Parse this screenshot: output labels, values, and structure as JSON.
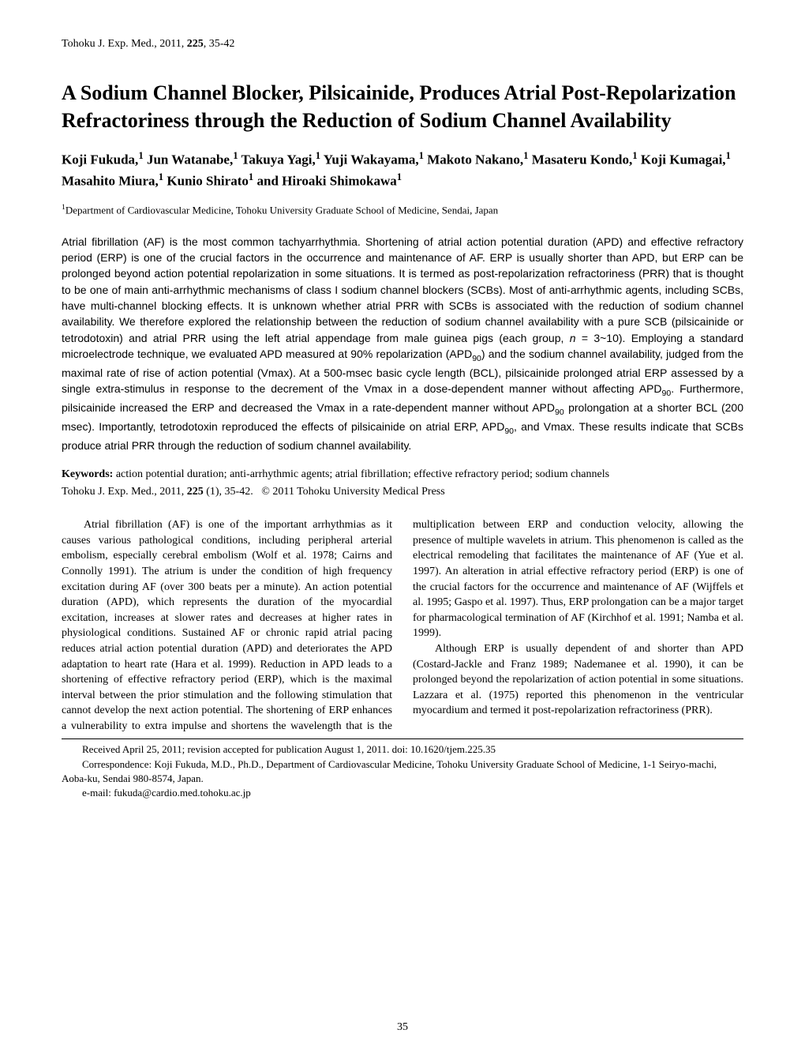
{
  "header": {
    "journal_ref": "Tohoku J. Exp. Med., 2011, 225, 35-42"
  },
  "title": "A Sodium Channel Blocker, Pilsicainide, Produces Atrial Post-Repolarization Refractoriness through the Reduction of Sodium Channel Availability",
  "authors_html": "Koji Fukuda,<sup>1</sup> Jun Watanabe,<sup>1</sup> Takuya Yagi,<sup>1</sup> Yuji Wakayama,<sup>1</sup> Makoto Nakano,<sup>1</sup> Masateru Kondo,<sup>1</sup> Koji Kumagai,<sup>1</sup> Masahito Miura,<sup>1</sup> Kunio Shirato<sup>1</sup> and Hiroaki Shimokawa<sup>1</sup>",
  "affiliation_html": "<sup>1</sup>Department of Cardiovascular Medicine, Tohoku University Graduate School of Medicine, Sendai, Japan",
  "abstract_html": "Atrial fibrillation (AF) is the most common tachyarrhythmia.  Shortening of atrial action potential duration (APD) and effective refractory period (ERP) is one of the crucial factors in the occurrence and maintenance of AF.  ERP is usually shorter than APD, but ERP can be prolonged beyond action potential repolarization in some situations.  It is termed as post-repolarization refractoriness (PRR) that is thought to be one of main anti-arrhythmic mechanisms of class I sodium channel blockers (SCBs).  Most of anti-arrhythmic agents, including SCBs, have multi-channel blocking effects.  It is unknown whether atrial PRR with SCBs is associated with the reduction of sodium channel availability.  We therefore explored the relationship between the reduction of sodium channel availability with a pure SCB (pilsicainide or tetrodotoxin) and atrial PRR using the left atrial appendage from male guinea pigs (each group, <em>n</em> = 3~10).  Employing a standard microelectrode technique, we evaluated APD measured at 90% repolarization (APD<sub>90</sub>) and the sodium channel availability, judged from the maximal rate of rise of action potential (Vmax).  At a 500-msec basic cycle length (BCL), pilsicainide prolonged atrial ERP assessed by a single extra-stimulus in response to the decrement of the Vmax in a dose-dependent manner without affecting APD<sub>90</sub>.  Furthermore, pilsicainide increased the ERP and decreased the Vmax in a rate-dependent manner without APD<sub>90</sub> prolongation at a shorter BCL (200 msec).  Importantly, tetrodotoxin reproduced the effects of pilsicainide on atrial ERP, APD<sub>90</sub>, and Vmax.  These results indicate that SCBs produce atrial PRR through the reduction of sodium channel availability.",
  "keywords": {
    "label": "Keywords:",
    "text": " action potential duration; anti-arrhythmic agents; atrial fibrillation; effective refractory period; sodium channels"
  },
  "citation": "Tohoku J. Exp. Med., 2011, 225 (1), 35-42.    © 2011 Tohoku University Medical Press",
  "body": {
    "p1": "Atrial fibrillation (AF) is one of the important arrhythmias as it causes various pathological conditions, including peripheral arterial embolism, especially cerebral embolism (Wolf et al. 1978; Cairns and Connolly 1991).  The atrium is under the condition of high frequency excitation during AF (over 300 beats per a minute).  An action potential duration (APD), which represents the duration of the myocardial excitation, increases at slower rates and decreases at higher rates in physiological conditions.  Sustained AF or chronic rapid atrial pacing reduces atrial action potential duration (APD) and deteriorates the APD adaptation to heart rate (Hara et al. 1999).  Reduction in APD leads to a shortening of effective refractory period (ERP), which is the maximal interval between the prior stimulation and the following stimulation that cannot develop the next action potential.  The shortening of ERP enhances a vulnerability to extra impulse and shortens the wavelength that is the multiplication between ERP and conduction velocity, allowing the presence of multiple wavelets in atrium.  This phenomenon is called as the electrical remodeling that facilitates the maintenance of AF (Yue et al. 1997).  An alteration in atrial effective refractory period (ERP) is one of the crucial factors for the occurrence and maintenance of AF (Wijffels et al. 1995; Gaspo et al. 1997).  Thus, ERP prolongation can be a major target for pharmacological termination of AF (Kirchhof et al. 1991; Namba et al. 1999).",
    "p2": "Although ERP is usually dependent of and shorter than APD (Costard-Jackle and Franz 1989; Nademanee et al. 1990), it can be prolonged beyond the repolarization of action potential in some situations.  Lazzara et al. (1975) reported this phenomenon in the ventricular myocardium and termed it post-repolarization refractoriness (PRR)."
  },
  "footer": {
    "received": "Received April 25, 2011; revision accepted for publication August 1, 2011.    doi: 10.1620/tjem.225.35",
    "correspondence": "Correspondence: Koji Fukuda, M.D., Ph.D., Department of Cardiovascular Medicine, Tohoku University Graduate School of Medicine, 1-1 Seiryo-machi, Aoba-ku, Sendai 980-8574, Japan.",
    "email": "e-mail: fukuda@cardio.med.tohoku.ac.jp"
  },
  "page_number": "35"
}
